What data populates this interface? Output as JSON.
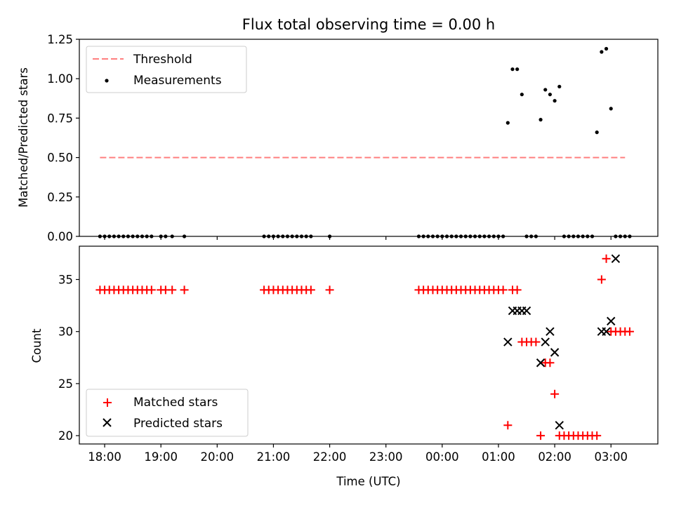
{
  "chart_data": [
    {
      "type": "scatter",
      "title": "Flux total observing time = 0.00 h",
      "ylabel": "Matched/Predicted stars",
      "xlabel": "",
      "xlim": [
        "17:33",
        "03:50"
      ],
      "ylim": [
        0,
        1.25
      ],
      "x_tick_labels": [
        "18:00",
        "19:00",
        "20:00",
        "21:00",
        "22:00",
        "23:00",
        "00:00",
        "01:00",
        "02:00",
        "03:00"
      ],
      "y_tick_labels": [
        "0.00",
        "0.25",
        "0.50",
        "0.75",
        "1.00",
        "1.25"
      ],
      "y_ticks": [
        0,
        0.25,
        0.5,
        0.75,
        1.0,
        1.25
      ],
      "legend_position": "upper-left",
      "threshold": {
        "name": "Threshold",
        "value": 0.5,
        "x_range": [
          "17:55",
          "03:15"
        ],
        "color": "#ff7f7f"
      },
      "series": [
        {
          "name": "Measurements",
          "color": "#000000",
          "x": [
            "17:55",
            "18:00",
            "18:05",
            "18:10",
            "18:15",
            "18:20",
            "18:25",
            "18:30",
            "18:35",
            "18:40",
            "18:45",
            "18:50",
            "19:00",
            "19:05",
            "19:12",
            "19:25",
            "20:50",
            "20:55",
            "21:00",
            "21:05",
            "21:10",
            "21:15",
            "21:20",
            "21:25",
            "21:30",
            "21:35",
            "21:40",
            "22:00",
            "23:35",
            "23:40",
            "23:45",
            "23:50",
            "23:55",
            "00:00",
            "00:05",
            "00:10",
            "00:15",
            "00:20",
            "00:25",
            "00:30",
            "00:35",
            "00:40",
            "00:45",
            "00:50",
            "00:55",
            "01:00",
            "01:05",
            "01:10",
            "01:15",
            "01:20",
            "01:25",
            "01:30",
            "01:35",
            "01:40",
            "01:45",
            "01:50",
            "01:55",
            "02:00",
            "02:05",
            "02:10",
            "02:15",
            "02:20",
            "02:25",
            "02:30",
            "02:35",
            "02:40",
            "02:45",
            "02:50",
            "02:55",
            "03:00",
            "03:05",
            "03:10",
            "03:15",
            "03:20"
          ],
          "y": [
            0,
            0,
            0,
            0,
            0,
            0,
            0,
            0,
            0,
            0,
            0,
            0,
            0,
            0,
            0,
            0,
            0,
            0,
            0,
            0,
            0,
            0,
            0,
            0,
            0,
            0,
            0,
            0,
            0,
            0,
            0,
            0,
            0,
            0,
            0,
            0,
            0,
            0,
            0,
            0,
            0,
            0,
            0,
            0,
            0,
            0,
            0,
            0.72,
            1.06,
            1.06,
            0.9,
            0,
            0,
            0,
            0.74,
            0.93,
            0.9,
            0.86,
            0.95,
            0,
            0,
            0,
            0,
            0,
            0,
            0,
            0.66,
            1.17,
            1.19,
            0.81,
            0,
            0,
            0,
            0
          ]
        }
      ]
    },
    {
      "type": "scatter",
      "title": "",
      "xlabel": "Time (UTC)",
      "ylabel": "Count",
      "xlim": [
        "17:33",
        "03:50"
      ],
      "ylim": [
        19.2,
        38.2
      ],
      "x_tick_labels": [
        "18:00",
        "19:00",
        "20:00",
        "21:00",
        "22:00",
        "23:00",
        "00:00",
        "01:00",
        "02:00",
        "03:00"
      ],
      "y_tick_labels": [
        "20",
        "25",
        "30",
        "35"
      ],
      "y_ticks": [
        20,
        25,
        30,
        35
      ],
      "legend_position": "lower-left",
      "series": [
        {
          "name": "Matched stars",
          "marker": "plus",
          "color": "#ff0000",
          "x": [
            "17:55",
            "18:00",
            "18:05",
            "18:10",
            "18:15",
            "18:20",
            "18:25",
            "18:30",
            "18:35",
            "18:40",
            "18:45",
            "18:50",
            "19:00",
            "19:05",
            "19:12",
            "19:25",
            "20:50",
            "20:55",
            "21:00",
            "21:05",
            "21:10",
            "21:15",
            "21:20",
            "21:25",
            "21:30",
            "21:35",
            "21:40",
            "22:00",
            "23:35",
            "23:40",
            "23:45",
            "23:50",
            "23:55",
            "00:00",
            "00:05",
            "00:10",
            "00:15",
            "00:20",
            "00:25",
            "00:30",
            "00:35",
            "00:40",
            "00:45",
            "00:50",
            "00:55",
            "01:00",
            "01:05",
            "01:10",
            "01:15",
            "01:20",
            "01:25",
            "01:30",
            "01:35",
            "01:40",
            "01:45",
            "01:50",
            "01:55",
            "02:00",
            "02:05",
            "02:10",
            "02:15",
            "02:20",
            "02:25",
            "02:30",
            "02:35",
            "02:40",
            "02:45",
            "02:50",
            "02:55",
            "03:00",
            "03:05",
            "03:10",
            "03:15",
            "03:20"
          ],
          "y": [
            34,
            34,
            34,
            34,
            34,
            34,
            34,
            34,
            34,
            34,
            34,
            34,
            34,
            34,
            34,
            34,
            34,
            34,
            34,
            34,
            34,
            34,
            34,
            34,
            34,
            34,
            34,
            34,
            34,
            34,
            34,
            34,
            34,
            34,
            34,
            34,
            34,
            34,
            34,
            34,
            34,
            34,
            34,
            34,
            34,
            34,
            34,
            21,
            34,
            34,
            29,
            29,
            29,
            29,
            20,
            27,
            27,
            24,
            20,
            20,
            20,
            20,
            20,
            20,
            20,
            20,
            20,
            35,
            37,
            30,
            30,
            30,
            30,
            30
          ]
        },
        {
          "name": "Predicted stars",
          "marker": "x",
          "color": "#000000",
          "x": [
            "01:10",
            "01:15",
            "01:20",
            "01:25",
            "01:30",
            "01:45",
            "01:50",
            "01:55",
            "02:00",
            "02:05",
            "02:50",
            "02:55",
            "03:00",
            "03:05"
          ],
          "y": [
            29,
            32,
            32,
            32,
            32,
            27,
            29,
            30,
            28,
            21,
            30,
            30,
            31,
            37
          ]
        }
      ]
    }
  ]
}
